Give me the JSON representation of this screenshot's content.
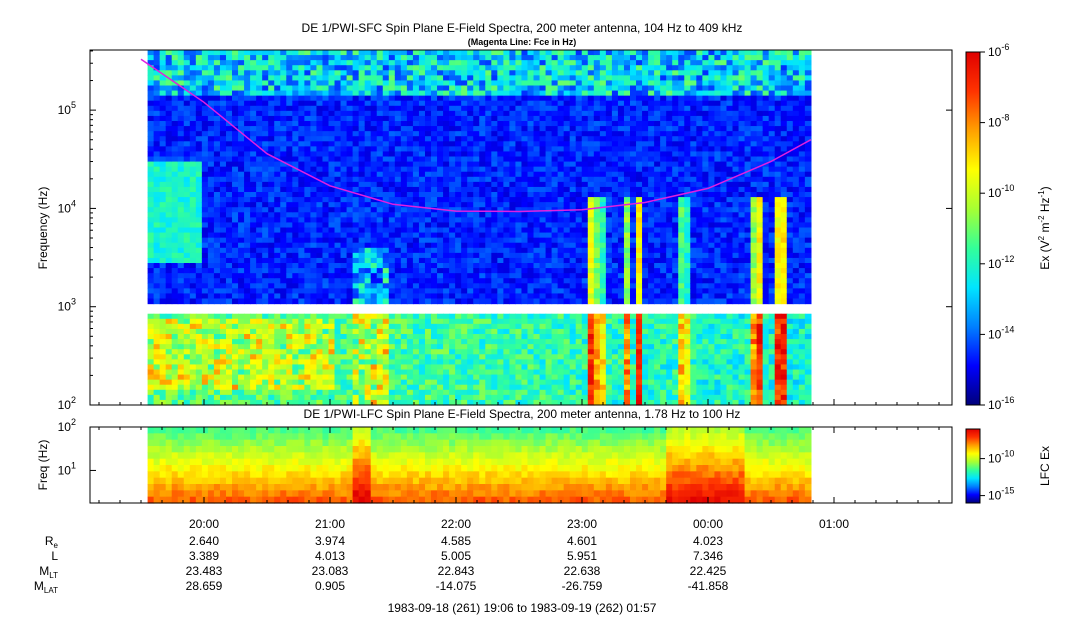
{
  "chart_data": [
    {
      "type": "heatmap",
      "title": "DE 1/PWI-SFC  Spin Plane E-Field Spectra, 200 meter antenna, 104 Hz to 409 kHz",
      "subtitle": "(Magenta Line: Fce in Hz)",
      "ylabel": "Frequency (Hz)",
      "yscale": "log",
      "ylim": [
        100,
        409000
      ],
      "ytick_values": [
        100,
        1000,
        10000,
        100000
      ],
      "yticks": [
        {
          "base": "10",
          "exp": "2"
        },
        {
          "base": "10",
          "exp": "3"
        },
        {
          "base": "10",
          "exp": "4"
        },
        {
          "base": "10",
          "exp": "5"
        }
      ],
      "data_time_range": [
        "19:06",
        "01:57"
      ],
      "gap_frequency_hz": 950,
      "series": [
        {
          "name": "Fce",
          "color": "#e020e0",
          "x": [
            "19:30",
            "20:00",
            "20:30",
            "21:00",
            "21:30",
            "22:00",
            "22:30",
            "23:00",
            "23:30",
            "00:00",
            "00:30",
            "00:49"
          ],
          "values": [
            330000,
            120000,
            36000,
            17000,
            11000,
            9400,
            9300,
            9700,
            11500,
            16000,
            30000,
            50000
          ]
        }
      ],
      "colorbar": {
        "label_main": "Ex (V",
        "label_sup1": "2",
        "label_mid": " m",
        "label_sup2": "-2",
        "label_mid2": " Hz",
        "label_sup3": "-1",
        "label_end": ")",
        "range_exp": [
          -16,
          -6
        ],
        "tick_values": [
          -16,
          -14,
          -12,
          -10,
          -8,
          -6
        ],
        "ticks": [
          {
            "base": "10",
            "exp": "-16"
          },
          {
            "base": "10",
            "exp": "-14"
          },
          {
            "base": "10",
            "exp": "-12"
          },
          {
            "base": "10",
            "exp": "-10"
          },
          {
            "base": "10",
            "exp": "-8"
          },
          {
            "base": "10",
            "exp": "-6"
          }
        ]
      }
    },
    {
      "type": "heatmap",
      "title": "DE 1/PWI-LFC  Spin Plane E-Field Spectra, 200 meter antenna, 1.78 Hz to 100 Hz",
      "ylabel": "Freq (Hz)",
      "yscale": "log",
      "ylim": [
        1.78,
        100
      ],
      "ytick_values": [
        10,
        100
      ],
      "yticks": [
        {
          "base": "10",
          "exp": "1"
        },
        {
          "base": "10",
          "exp": "2"
        }
      ],
      "colorbar": {
        "label": "LFC Ex",
        "range_exp": [
          -16,
          -6
        ],
        "tick_values": [
          -15,
          -10
        ],
        "ticks": [
          {
            "base": "10",
            "exp": "-15"
          },
          {
            "base": "10",
            "exp": "-10"
          }
        ]
      }
    }
  ],
  "time_axis": {
    "ticks": [
      "20:00",
      "21:00",
      "22:00",
      "23:00",
      "00:00",
      "01:00"
    ],
    "rows": [
      {
        "label": "R",
        "sub": "e",
        "values": [
          "2.640",
          "3.974",
          "4.585",
          "4.601",
          "4.023"
        ]
      },
      {
        "label": "L",
        "sub": "",
        "values": [
          "3.389",
          "4.013",
          "5.005",
          "5.951",
          "7.346"
        ]
      },
      {
        "label": "M",
        "sub": "LT",
        "values": [
          "23.483",
          "23.083",
          "22.843",
          "22.638",
          "22.425"
        ]
      },
      {
        "label": "M",
        "sub": "LAT",
        "values": [
          "28.659",
          "0.905",
          "-14.075",
          "-26.759",
          "-41.858"
        ]
      }
    ],
    "footer": "1983-09-18 (261) 19:06 to 1983-09-19 (262) 01:57"
  },
  "colors": {
    "colormap": [
      "#00007a",
      "#0000ff",
      "#0080ff",
      "#00e5ff",
      "#33ff99",
      "#a6ff33",
      "#ffff00",
      "#ffa000",
      "#ff3300",
      "#e00000"
    ],
    "fce_line": "#e020e0"
  }
}
